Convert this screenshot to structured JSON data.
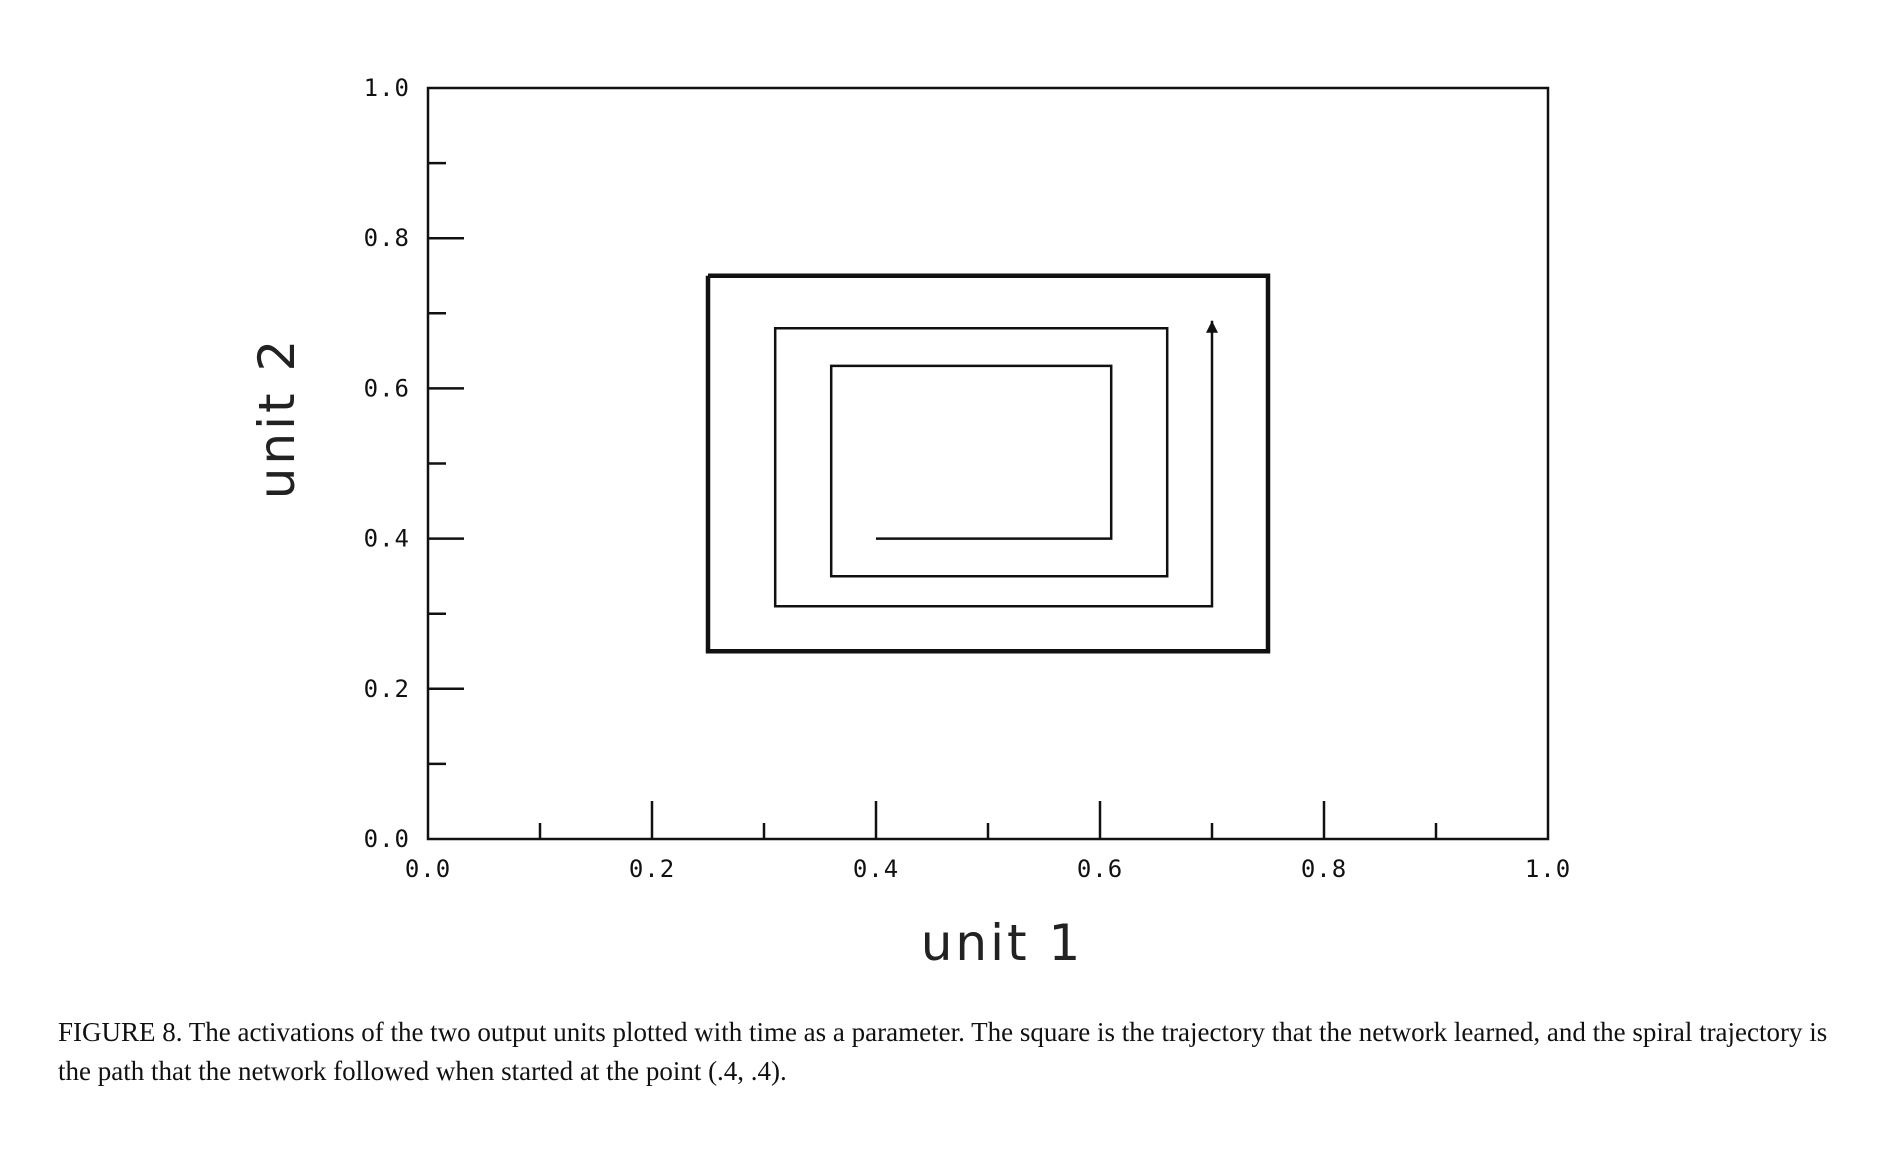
{
  "chart_data": {
    "type": "line",
    "xlabel": "unit 1",
    "ylabel": "unit 2",
    "xlim": [
      0.0,
      1.0
    ],
    "ylim": [
      0.0,
      1.0
    ],
    "x_ticks": [
      "0.0",
      "0.2",
      "0.4",
      "0.6",
      "0.8",
      "1.0"
    ],
    "y_ticks": [
      "0.0",
      "0.2",
      "0.4",
      "0.6",
      "0.8",
      "1.0"
    ],
    "grid": false,
    "series": [
      {
        "role": "learned square trajectory",
        "points": [
          [
            0.25,
            0.75
          ],
          [
            0.75,
            0.75
          ],
          [
            0.75,
            0.25
          ],
          [
            0.25,
            0.25
          ],
          [
            0.25,
            0.75
          ]
        ]
      },
      {
        "role": "spiral trajectory started at (.4, .4)",
        "arrow_at_end": true,
        "points": [
          [
            0.4,
            0.4
          ],
          [
            0.61,
            0.4
          ],
          [
            0.61,
            0.63
          ],
          [
            0.36,
            0.63
          ],
          [
            0.36,
            0.35
          ],
          [
            0.66,
            0.35
          ],
          [
            0.66,
            0.68
          ],
          [
            0.31,
            0.68
          ],
          [
            0.31,
            0.31
          ],
          [
            0.7,
            0.31
          ],
          [
            0.7,
            0.69
          ]
        ]
      }
    ]
  },
  "caption": "FIGURE 8.  The activations of the two output units plotted with time as a parameter.  The square is the trajectory that the network learned, and the spiral trajectory is the path that the network followed when started at the point (.4, .4)."
}
